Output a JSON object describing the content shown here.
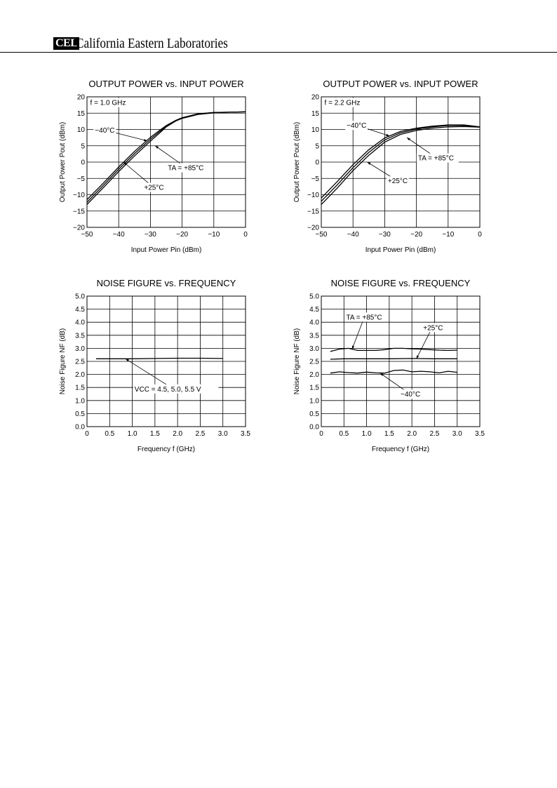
{
  "header": {
    "logo_text": "CEL",
    "company": "California Eastern Laboratories"
  },
  "chart_data": [
    {
      "id": "c1",
      "type": "line",
      "title": "OUTPUT POWER vs. INPUT POWER",
      "xlabel": "Input Power  Pin (dBm)",
      "ylabel": "Output Power  Pout (dBm)",
      "xlim": [
        -50,
        0
      ],
      "ylim": [
        -20,
        20
      ],
      "xticks": [
        -50,
        -40,
        -30,
        -20,
        -10,
        0
      ],
      "xtick_labels": [
        "−50",
        "−40",
        "−30",
        "−20",
        "−10",
        "0"
      ],
      "yticks": [
        -20,
        -15,
        -10,
        -5,
        0,
        5,
        10,
        15,
        20
      ],
      "ytick_labels": [
        "−20",
        "−15",
        "−10",
        "−5",
        "0",
        "5",
        "10",
        "15",
        "20"
      ],
      "grid": true,
      "annotations": [
        {
          "text": "f = 1.0 GHz",
          "x": -49,
          "y": 17.5
        },
        {
          "text": "−40°C",
          "x": -47.5,
          "y": 9,
          "arrow_to": [
            -31,
            6.5
          ]
        },
        {
          "text": "TA = +85°C",
          "x": -24.5,
          "y": -2.5,
          "arrow_to": [
            -28.5,
            5
          ]
        },
        {
          "text": "+25°C",
          "x": -32,
          "y": -8.5,
          "arrow_to": [
            -38.5,
            0
          ]
        }
      ],
      "series": [
        {
          "name": "−40°C",
          "x": [
            -50,
            -45,
            -40,
            -35,
            -30,
            -27,
            -25,
            -22,
            -20,
            -15,
            -10,
            -5,
            0
          ],
          "y": [
            -11.5,
            -6.6,
            -1.5,
            3.3,
            7.6,
            9.8,
            11.2,
            12.8,
            13.6,
            14.8,
            15.2,
            15.3,
            15.4
          ]
        },
        {
          "name": "+25°C",
          "x": [
            -50,
            -45,
            -40,
            -35,
            -30,
            -27,
            -25,
            -22,
            -20,
            -15,
            -10,
            -5,
            0
          ],
          "y": [
            -12.3,
            -7.3,
            -2.2,
            2.6,
            7.0,
            9.4,
            11.0,
            12.7,
            13.5,
            14.7,
            15.2,
            15.3,
            15.4
          ]
        },
        {
          "name": "+85°C",
          "x": [
            -50,
            -45,
            -40,
            -35,
            -30,
            -27,
            -25,
            -22,
            -20,
            -15,
            -10,
            -5,
            0
          ],
          "y": [
            -13.0,
            -8.0,
            -2.9,
            1.9,
            6.4,
            9.0,
            10.8,
            12.6,
            13.4,
            14.6,
            15.1,
            15.3,
            15.4
          ]
        }
      ]
    },
    {
      "id": "c2",
      "type": "line",
      "title": "OUTPUT POWER vs. INPUT POWER",
      "xlabel": "Input Power  Pin (dBm)",
      "ylabel": "Output Power  Pout (dBm)",
      "xlim": [
        -50,
        0
      ],
      "ylim": [
        -20,
        20
      ],
      "xticks": [
        -50,
        -40,
        -30,
        -20,
        -10,
        0
      ],
      "xtick_labels": [
        "−50",
        "−40",
        "−30",
        "−20",
        "−10",
        "0"
      ],
      "yticks": [
        -20,
        -15,
        -10,
        -5,
        0,
        5,
        10,
        15,
        20
      ],
      "ytick_labels": [
        "−20",
        "−15",
        "−10",
        "−5",
        "0",
        "5",
        "10",
        "15",
        "20"
      ],
      "grid": true,
      "annotations": [
        {
          "text": "f = 2.2 GHz",
          "x": -49,
          "y": 17.5
        },
        {
          "text": "−40°C",
          "x": -42,
          "y": 10.5,
          "arrow_to": [
            -28.5,
            8
          ]
        },
        {
          "text": "TA = +85°C",
          "x": -19.5,
          "y": 0.5,
          "arrow_to": [
            -23,
            7.5
          ]
        },
        {
          "text": "+25°C",
          "x": -29,
          "y": -6.5,
          "arrow_to": [
            -35.5,
            0
          ]
        }
      ],
      "series": [
        {
          "name": "−40°C",
          "x": [
            -50,
            -45,
            -40,
            -35,
            -30,
            -25,
            -20,
            -15,
            -10,
            -5,
            0
          ],
          "y": [
            -11.0,
            -6.0,
            -0.8,
            3.8,
            7.4,
            9.4,
            10.4,
            11.0,
            11.4,
            11.4,
            10.8
          ]
        },
        {
          "name": "+25°C",
          "x": [
            -50,
            -45,
            -40,
            -35,
            -30,
            -25,
            -20,
            -15,
            -10,
            -5,
            0
          ],
          "y": [
            -12.0,
            -7.0,
            -1.7,
            3.0,
            6.8,
            9.0,
            10.1,
            10.8,
            11.2,
            11.2,
            10.8
          ]
        },
        {
          "name": "+85°C",
          "x": [
            -50,
            -45,
            -40,
            -35,
            -30,
            -25,
            -20,
            -15,
            -10,
            -5,
            0
          ],
          "y": [
            -13.0,
            -8.0,
            -2.6,
            2.1,
            6.1,
            8.5,
            9.7,
            10.4,
            10.8,
            10.9,
            10.7
          ]
        }
      ]
    },
    {
      "id": "c3",
      "type": "line",
      "title": "NOISE FIGURE vs. FREQUENCY",
      "xlabel": "Frequency  f (GHz)",
      "ylabel": "Noise Figure  NF (dB)",
      "xlim": [
        0,
        3.5
      ],
      "ylim": [
        0,
        5
      ],
      "xticks": [
        0,
        0.5,
        1,
        1.5,
        2,
        2.5,
        3,
        3.5
      ],
      "xtick_labels": [
        "0",
        "0.5",
        "1.0",
        "1.5",
        "2.0",
        "2.5",
        "3.0",
        "3.5"
      ],
      "yticks": [
        0,
        0.5,
        1,
        1.5,
        2,
        2.5,
        3,
        3.5,
        4,
        4.5,
        5
      ],
      "ytick_labels": [
        "0.0",
        "0.5",
        "1.0",
        "1.5",
        "2.0",
        "2.5",
        "3.0",
        "3.5",
        "4.0",
        "4.5",
        "5.0"
      ],
      "grid": true,
      "annotations": [
        {
          "text": "VCC = 4.5, 5.0, 5.5 V",
          "x": 1.05,
          "y": 1.35,
          "arrow_to": [
            0.85,
            2.6
          ]
        }
      ],
      "series": [
        {
          "name": "VCC = 4.5, 5.0, 5.5 V",
          "x": [
            0.2,
            0.5,
            0.8,
            1.0,
            1.5,
            2.0,
            2.5,
            3.0
          ],
          "y": [
            2.6,
            2.6,
            2.6,
            2.6,
            2.61,
            2.62,
            2.62,
            2.61
          ]
        }
      ]
    },
    {
      "id": "c4",
      "type": "line",
      "title": "NOISE FIGURE vs. FREQUENCY",
      "xlabel": "Frequency  f (GHz)",
      "ylabel": "Noise Figure  NF (dB)",
      "xlim": [
        0,
        3.5
      ],
      "ylim": [
        0,
        5
      ],
      "xticks": [
        0,
        0.5,
        1,
        1.5,
        2,
        2.5,
        3,
        3.5
      ],
      "xtick_labels": [
        "0",
        "0.5",
        "1.0",
        "1.5",
        "2.0",
        "2.5",
        "3.0",
        "3.5"
      ],
      "yticks": [
        0,
        0.5,
        1,
        1.5,
        2,
        2.5,
        3,
        3.5,
        4,
        4.5,
        5
      ],
      "ytick_labels": [
        "0.0",
        "0.5",
        "1.0",
        "1.5",
        "2.0",
        "2.5",
        "3.0",
        "3.5",
        "4.0",
        "4.5",
        "5.0"
      ],
      "grid": true,
      "annotations": [
        {
          "text": "TA = +85°C",
          "x": 0.55,
          "y": 4.1,
          "arrow_to": [
            0.68,
            2.97
          ]
        },
        {
          "text": "+25°C",
          "x": 2.25,
          "y": 3.7,
          "arrow_to": [
            2.1,
            2.6
          ]
        },
        {
          "text": "−40°C",
          "x": 1.75,
          "y": 1.15,
          "arrow_to": [
            1.3,
            2.05
          ]
        }
      ],
      "series": [
        {
          "name": "TA = +85°C",
          "x": [
            0.2,
            0.4,
            0.6,
            0.8,
            1.0,
            1.2,
            1.4,
            1.6,
            1.8,
            2.0,
            2.2,
            2.4,
            2.6,
            2.8,
            3.0
          ],
          "y": [
            2.88,
            2.97,
            3.0,
            2.92,
            2.92,
            2.92,
            2.95,
            3.0,
            3.0,
            2.98,
            2.97,
            2.95,
            2.93,
            2.92,
            2.93
          ]
        },
        {
          "name": "+25°C",
          "x": [
            0.2,
            0.5,
            1.0,
            1.5,
            2.0,
            2.5,
            3.0
          ],
          "y": [
            2.58,
            2.6,
            2.6,
            2.6,
            2.61,
            2.6,
            2.6
          ]
        },
        {
          "name": "−40°C",
          "x": [
            0.2,
            0.4,
            0.6,
            0.8,
            1.0,
            1.2,
            1.4,
            1.6,
            1.8,
            2.0,
            2.2,
            2.4,
            2.6,
            2.8,
            3.0
          ],
          "y": [
            2.05,
            2.1,
            2.07,
            2.05,
            2.09,
            2.06,
            2.05,
            2.15,
            2.17,
            2.1,
            2.12,
            2.1,
            2.06,
            2.12,
            2.08
          ]
        }
      ]
    }
  ]
}
